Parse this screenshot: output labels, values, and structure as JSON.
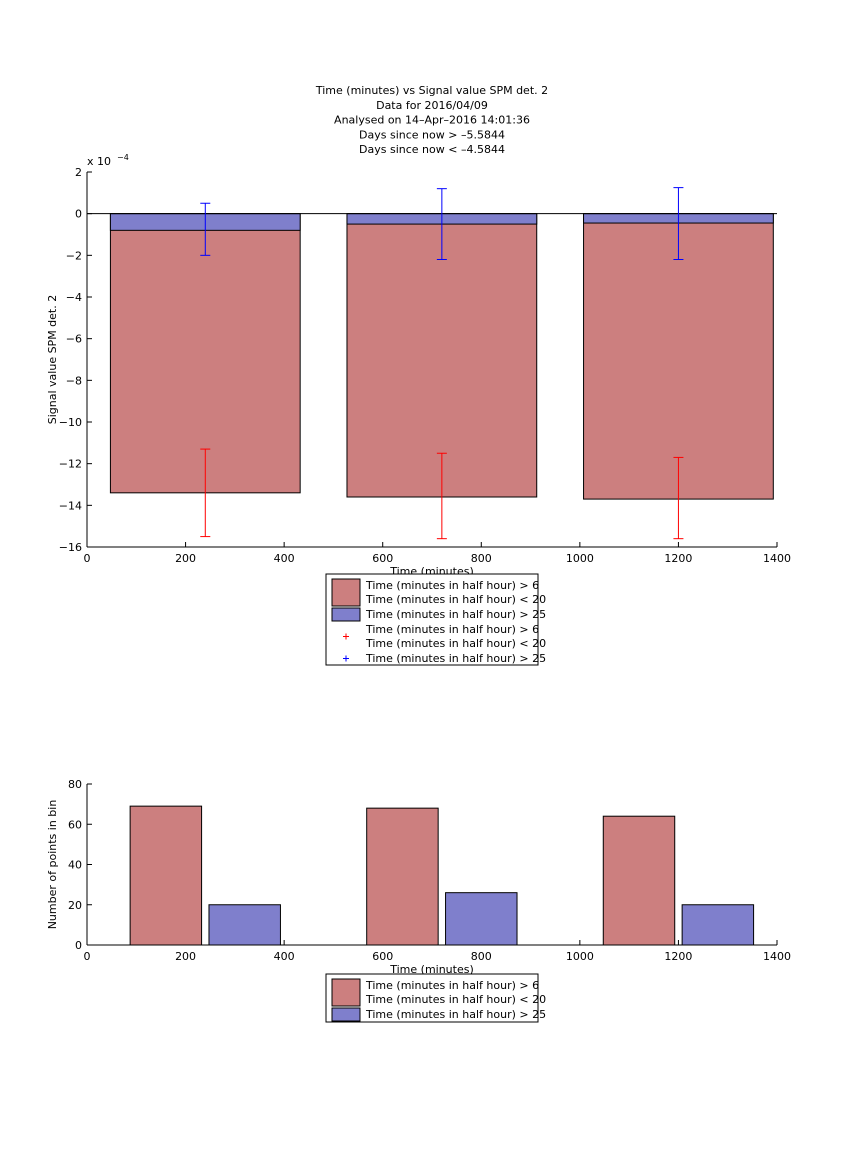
{
  "title_lines": [
    "Time (minutes) vs Signal value SPM det. 2",
    "Data for 2016/04/09",
    "Analysed on 14–Apr–2016 14:01:36",
    "Days since now > –5.5844",
    "Days since now < –4.5844"
  ],
  "chart_data": [
    {
      "type": "bar",
      "xlabel": "Time (minutes)",
      "ylabel": "Signal value SPM det. 2",
      "exponent_label": "x 10",
      "exponent_power": "−4",
      "xlim": [
        0,
        1400
      ],
      "ylim": [
        -16,
        2
      ],
      "ylim_scale": 0.0001,
      "xticks": [
        0,
        200,
        400,
        600,
        800,
        1000,
        1200,
        1400
      ],
      "yticks": [
        2,
        0,
        -2,
        -4,
        -6,
        -8,
        -10,
        -12,
        -14,
        -16
      ],
      "xtick_labels": [
        "0",
        "200",
        "400",
        "600",
        "800",
        "1000",
        "1200",
        "1400"
      ],
      "ytick_labels": [
        "2",
        "0",
        "−2",
        "−4",
        "−6",
        "−8",
        "−10",
        "−12",
        "−14",
        "−16"
      ],
      "stacked_bars": {
        "centers": [
          240,
          720,
          1200
        ],
        "width": 385,
        "series": [
          {
            "name": "Time (minutes in half hour) > 6 Time (minutes in half hour) < 20",
            "color": "#cc7f7f",
            "values": [
              -13.4,
              -13.6,
              -13.7
            ]
          },
          {
            "name": "Time (minutes in half hour) > 25",
            "color": "#7f7fcc",
            "values": [
              -0.8,
              -0.5,
              -0.45
            ]
          }
        ]
      },
      "error_bars": [
        {
          "series": "Time (minutes in half hour) > 6 Time (minutes in half hour) < 20",
          "color": "#ff0000",
          "x": [
            240,
            720,
            1200
          ],
          "low": [
            -15.5,
            -15.6,
            -15.6
          ],
          "high": [
            -11.3,
            -11.5,
            -11.7
          ]
        },
        {
          "series": "Time (minutes in half hour) > 25",
          "color": "#0000ff",
          "x": [
            240,
            720,
            1200
          ],
          "low": [
            -2.0,
            -2.2,
            -2.2
          ],
          "high": [
            0.5,
            1.2,
            1.25
          ]
        }
      ],
      "legend": [
        {
          "type": "patch",
          "color": "#cc7f7f",
          "line1": "Time (minutes in half hour) > 6",
          "line2": "Time (minutes in half hour) < 20"
        },
        {
          "type": "patch",
          "color": "#7f7fcc",
          "line1": "Time (minutes in half hour) > 25",
          "line2": ""
        },
        {
          "type": "marker",
          "color": "#ff0000",
          "line1": "Time (minutes in half hour) > 6",
          "line2": "Time (minutes in half hour) < 20"
        },
        {
          "type": "marker",
          "color": "#0000ff",
          "line1": "Time (minutes in half hour) > 25",
          "line2": ""
        }
      ]
    },
    {
      "type": "bar",
      "xlabel": "Time (minutes)",
      "ylabel": "Number of points in bin",
      "xlim": [
        0,
        1400
      ],
      "ylim": [
        0,
        80
      ],
      "xticks": [
        0,
        200,
        400,
        600,
        800,
        1000,
        1200,
        1400
      ],
      "yticks": [
        0,
        20,
        40,
        60,
        80
      ],
      "xtick_labels": [
        "0",
        "200",
        "400",
        "600",
        "800",
        "1000",
        "1200",
        "1400"
      ],
      "ytick_labels": [
        "0",
        "20",
        "40",
        "60",
        "80"
      ],
      "bars": {
        "width": 145,
        "series": [
          {
            "name": "Time (minutes in half hour) > 6 Time (minutes in half hour) < 20",
            "color": "#cc7f7f",
            "x": [
              160,
              640,
              1120
            ],
            "values": [
              69,
              68,
              64
            ]
          },
          {
            "name": "Time (minutes in half hour) > 25",
            "color": "#7f7fcc",
            "x": [
              320,
              800,
              1280
            ],
            "values": [
              20,
              26,
              20
            ]
          }
        ]
      },
      "legend": [
        {
          "type": "patch",
          "color": "#cc7f7f",
          "line1": "Time (minutes in half hour) > 6",
          "line2": "Time (minutes in half hour) < 20"
        },
        {
          "type": "patch",
          "color": "#7f7fcc",
          "line1": "Time (minutes in half hour) > 25",
          "line2": ""
        }
      ]
    }
  ]
}
